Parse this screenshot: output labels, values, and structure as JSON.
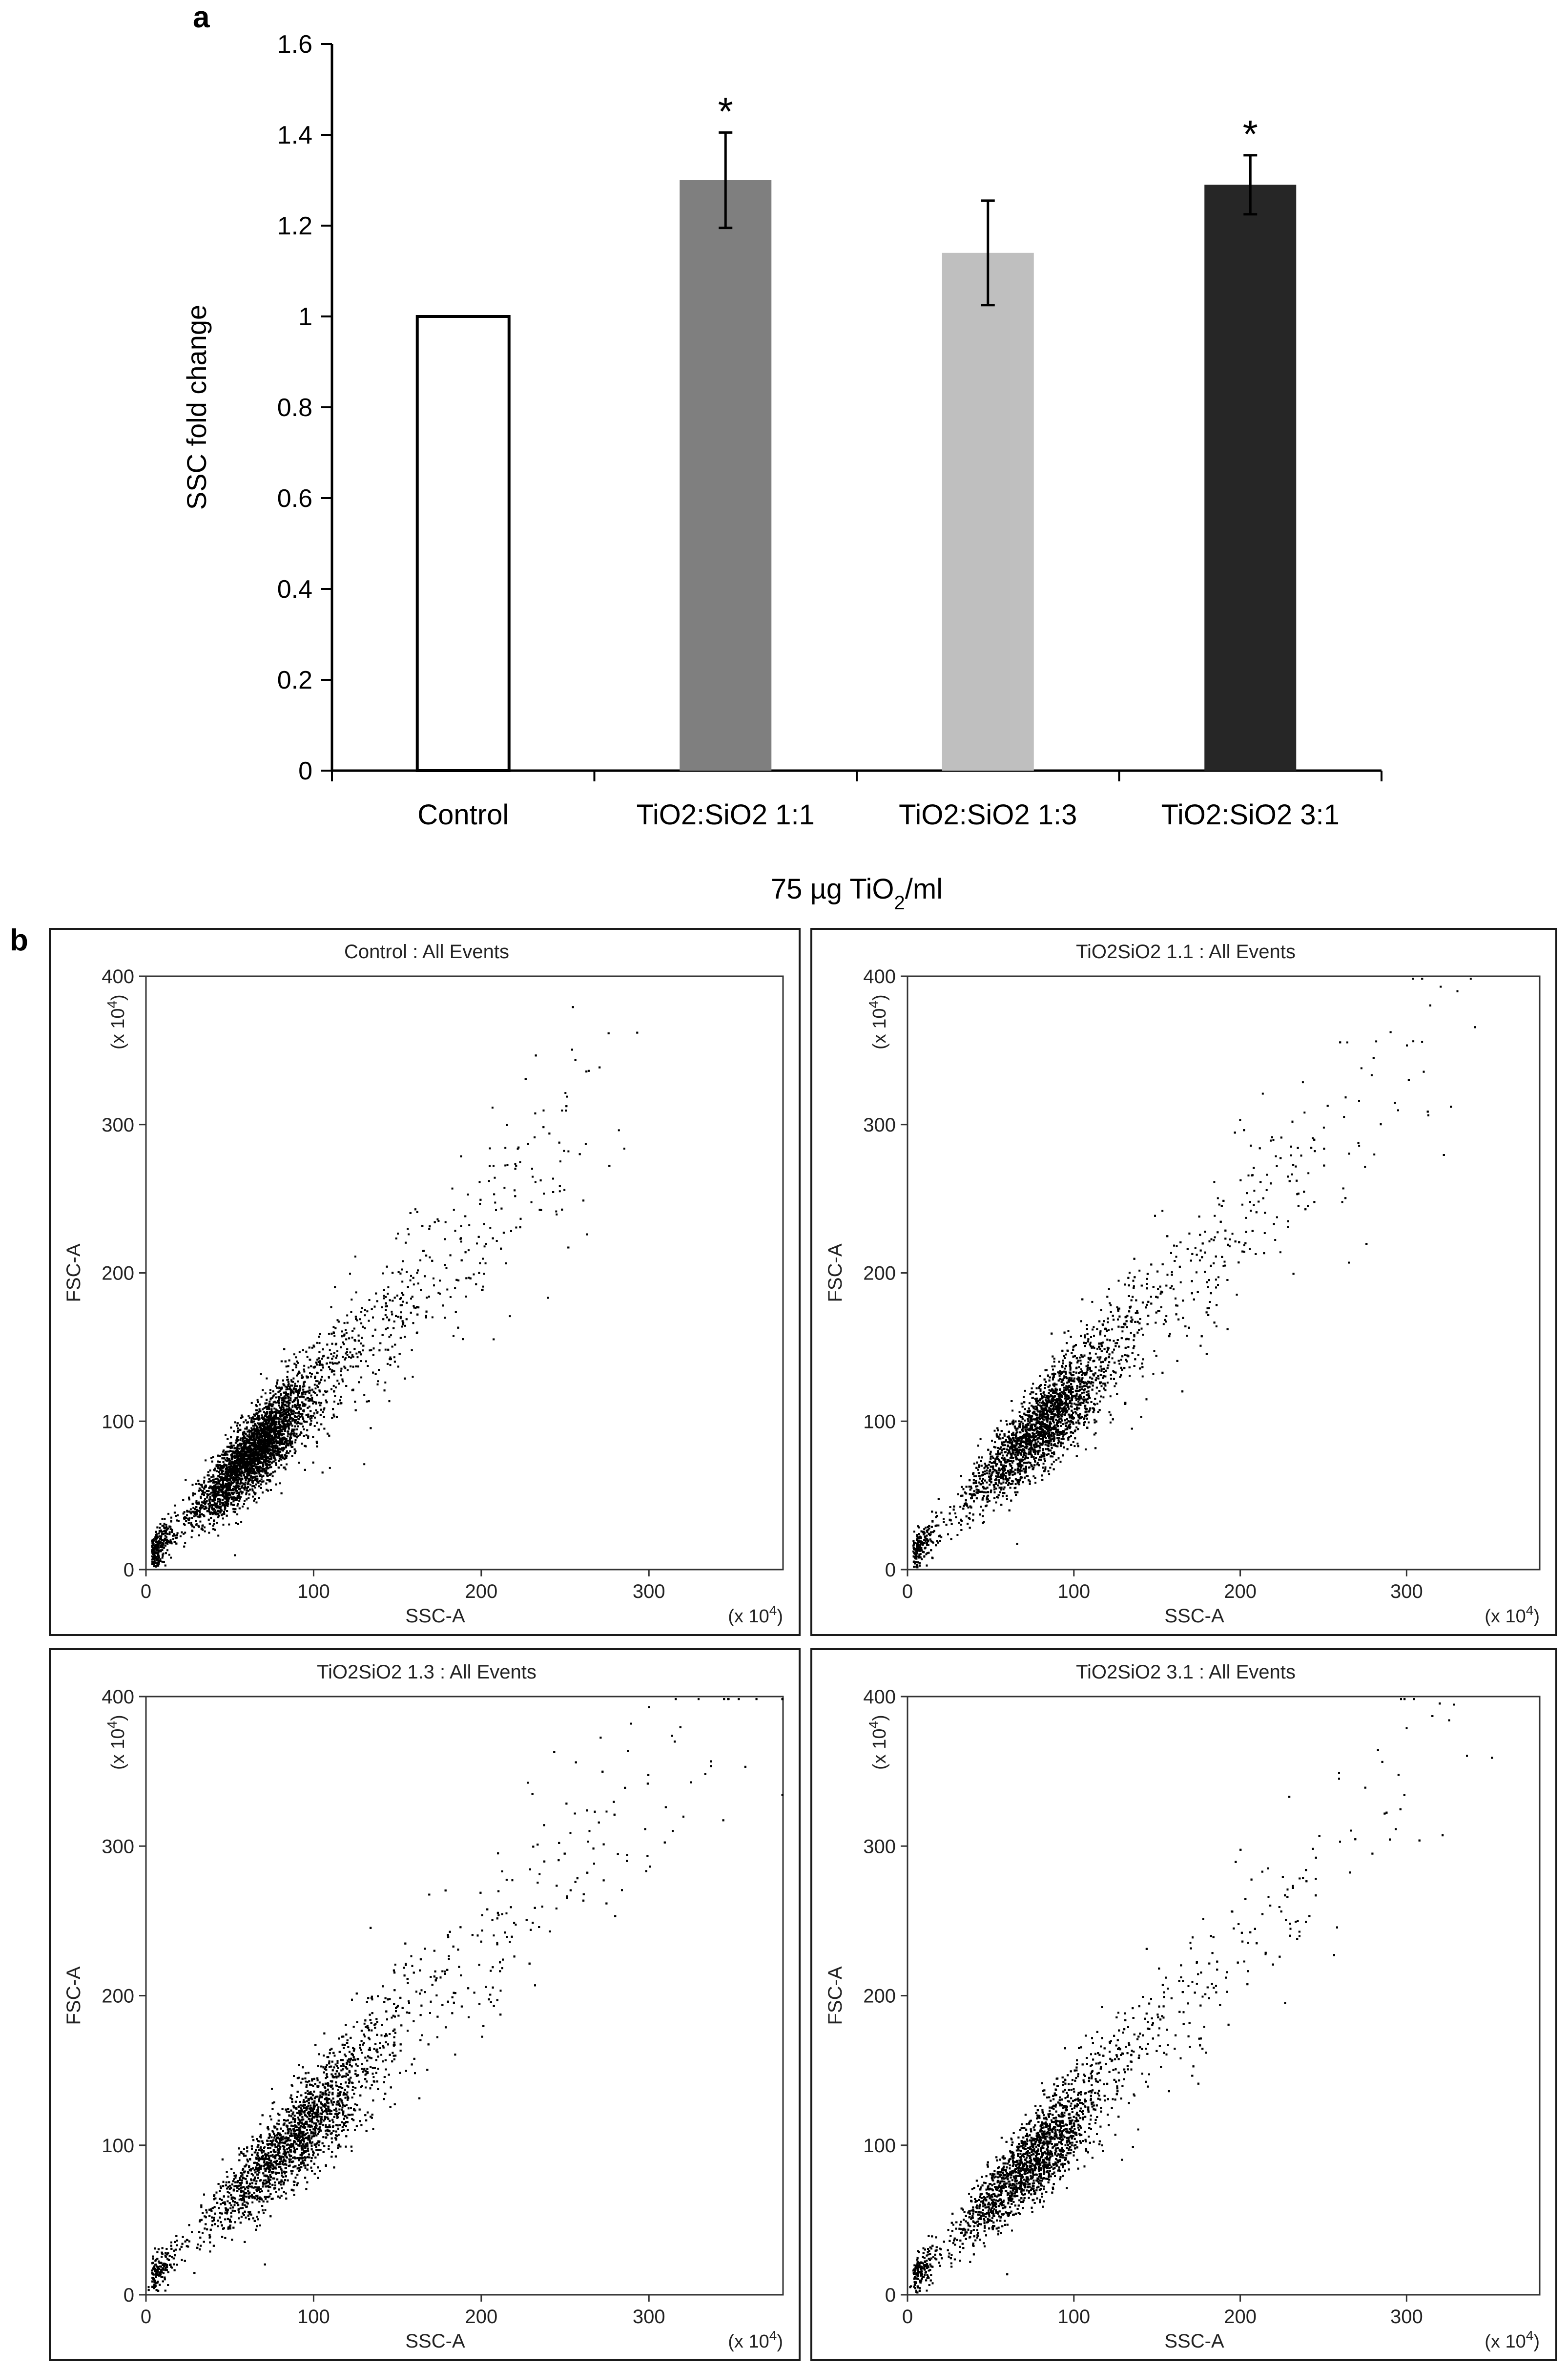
{
  "panels": {
    "a": "a",
    "b": "b"
  },
  "chart_data": [
    {
      "type": "bar",
      "panel": "a",
      "title": "",
      "xlabel": "75 µg TiO2/ml",
      "xlabel_parts": {
        "pre": "75 µg TiO",
        "sub": "2",
        "post": "/ml"
      },
      "ylabel": "SSC fold change",
      "ylim": [
        0,
        1.6
      ],
      "yticks": [
        "0",
        "0.2",
        "0.4",
        "0.6",
        "0.8",
        "1",
        "1.2",
        "1.4",
        "1.6"
      ],
      "categories": [
        "Control",
        "TiO2:SiO2 1:1",
        "TiO2:SiO2 1:3",
        "TiO2:SiO2 3:1"
      ],
      "values": [
        1.0,
        1.3,
        1.14,
        1.29
      ],
      "errors": [
        0,
        0.105,
        0.115,
        0.065
      ],
      "significance": [
        "",
        "*",
        "",
        "*"
      ],
      "colors": [
        "#ffffff",
        "#7f7f7f",
        "#bfbfbf",
        "#262626"
      ]
    },
    {
      "type": "scatter",
      "panel": "b",
      "plots": [
        {
          "title": "Control : All Events",
          "spread": 0.75,
          "peak": 62,
          "dense_end": 70
        },
        {
          "title": "TiO2SiO2 1.1 : All Events",
          "spread": 1.0,
          "peak": 78,
          "dense_end": 80
        },
        {
          "title": "TiO2SiO2 1.3 : All Events",
          "spread": 1.15,
          "peak": 85,
          "dense_end": 90
        },
        {
          "title": "TiO2SiO2 3.1 : All Events",
          "spread": 1.0,
          "peak": 72,
          "dense_end": 75
        }
      ],
      "xlabel": "SSC-A",
      "ylabel": "FSC-A",
      "axis_multiplier_base": "(x 10",
      "axis_multiplier_exp": "4",
      "axis_multiplier_close": ")",
      "xticks": [
        "0",
        "100",
        "200",
        "300"
      ],
      "yticks": [
        "0",
        "100",
        "200",
        "300",
        "400"
      ],
      "xlim": [
        0,
        380
      ],
      "ylim": [
        0,
        400
      ],
      "point_color": "#000000"
    }
  ]
}
